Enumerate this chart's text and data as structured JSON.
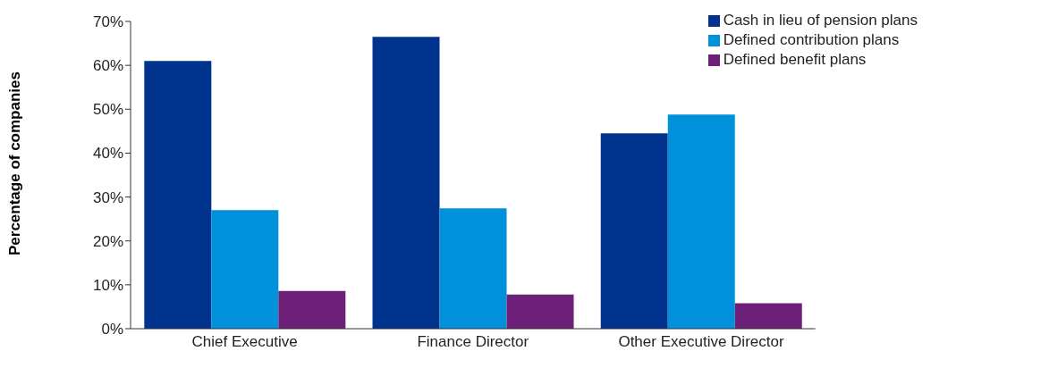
{
  "chart_data": {
    "type": "bar",
    "ylabel": "Percentage of companies",
    "categories": [
      "Chief Executive",
      "Finance Director",
      "Other Executive Director"
    ],
    "series": [
      {
        "name": "Cash in lieu of pension plans",
        "color": "#00338d",
        "values": [
          61,
          66.5,
          44.5
        ]
      },
      {
        "name": "Defined contribution plans",
        "color": "#0091da",
        "values": [
          27,
          27.4,
          48.8
        ]
      },
      {
        "name": "Defined benefit plans",
        "color": "#6d2077",
        "values": [
          8.6,
          7.8,
          5.8
        ]
      }
    ],
    "ylim": [
      0,
      70
    ],
    "yticks": [
      {
        "value": 0,
        "label": "0%"
      },
      {
        "value": 10,
        "label": "10%"
      },
      {
        "value": 20,
        "label": "20%"
      },
      {
        "value": 30,
        "label": "30%"
      },
      {
        "value": 40,
        "label": "40%"
      },
      {
        "value": 50,
        "label": "50%"
      },
      {
        "value": 60,
        "label": "60%"
      },
      {
        "value": 70,
        "label": "70%"
      }
    ],
    "grid": false,
    "legend": "top right"
  }
}
